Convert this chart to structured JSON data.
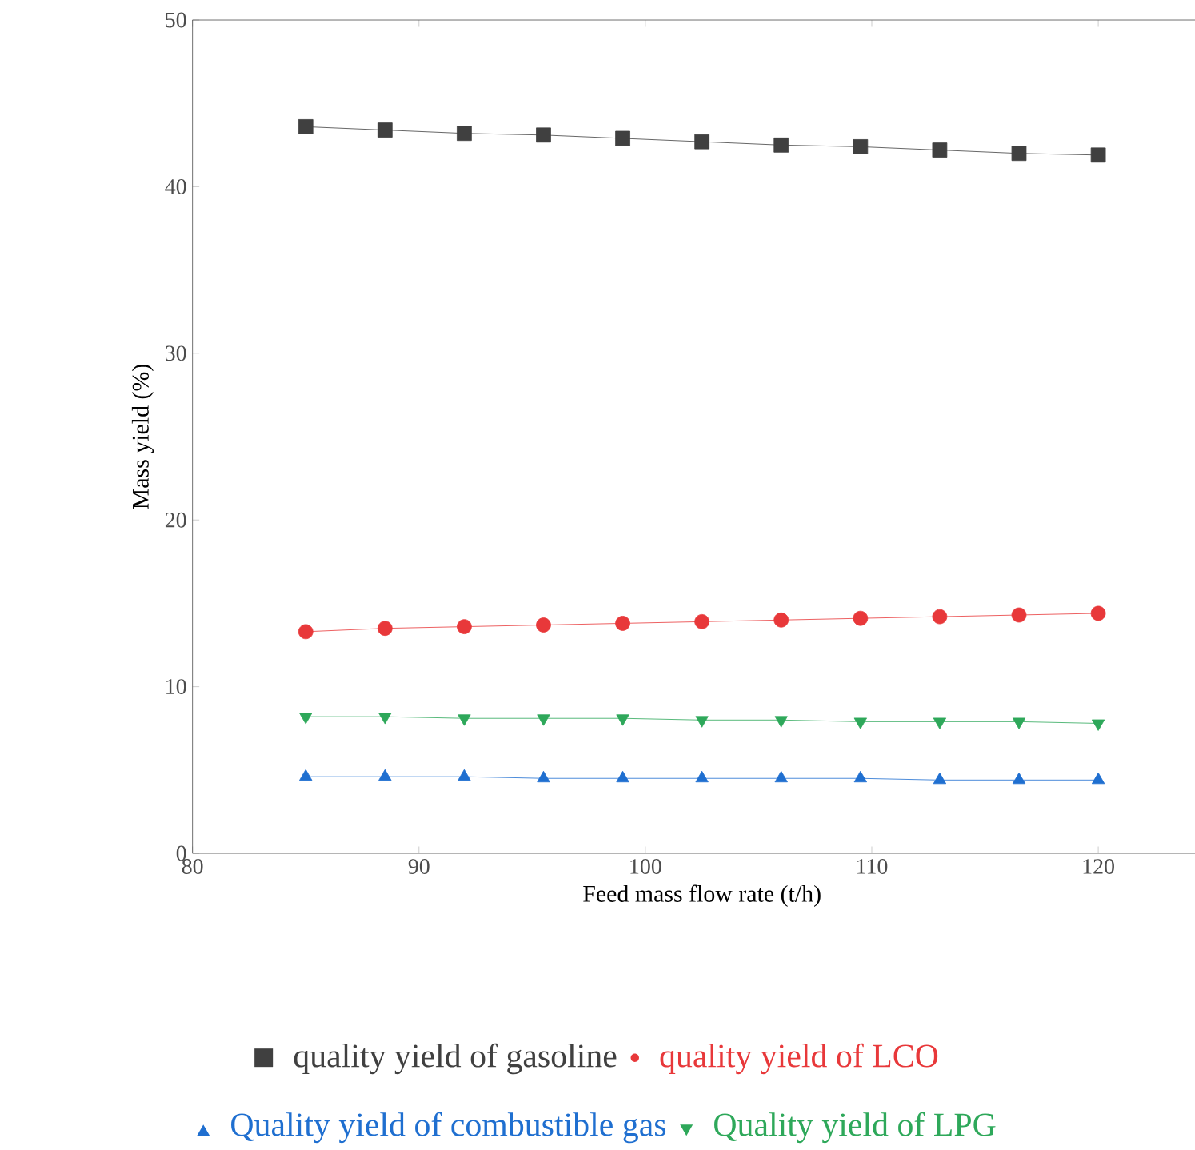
{
  "chart_data": {
    "type": "line",
    "xlabel": "Feed mass flow rate (t/h)",
    "ylabel": "Mass yield (%)",
    "x": [
      85,
      88.5,
      92,
      95.5,
      99,
      102.5,
      106,
      109.5,
      113,
      116.5,
      120
    ],
    "xlim": [
      80,
      125
    ],
    "xticks": [
      80,
      90,
      100,
      110,
      120
    ],
    "ylim": [
      0,
      50
    ],
    "yticks": [
      0,
      10,
      20,
      30,
      40,
      50
    ],
    "grid": false,
    "legend": "bottom",
    "series": [
      {
        "name": "quality yield of gasoline",
        "color": "#404040",
        "marker": "square",
        "values": [
          43.6,
          43.4,
          43.2,
          43.1,
          42.9,
          42.7,
          42.5,
          42.4,
          42.2,
          42.0,
          41.9
        ]
      },
      {
        "name": "quality yield of LCO",
        "color": "#e8383a",
        "marker": "circle",
        "values": [
          13.3,
          13.5,
          13.6,
          13.7,
          13.8,
          13.9,
          14.0,
          14.1,
          14.2,
          14.3,
          14.4
        ]
      },
      {
        "name": "Quality yield of combustible gas",
        "color": "#1f6fd0",
        "marker": "triangle",
        "values": [
          4.6,
          4.6,
          4.6,
          4.5,
          4.5,
          4.5,
          4.5,
          4.5,
          4.4,
          4.4,
          4.4
        ]
      },
      {
        "name": "Quality yield of LPG",
        "color": "#2ea85a",
        "marker": "triangle-down",
        "values": [
          8.2,
          8.2,
          8.1,
          8.1,
          8.1,
          8.0,
          8.0,
          7.9,
          7.9,
          7.9,
          7.8
        ]
      }
    ]
  }
}
